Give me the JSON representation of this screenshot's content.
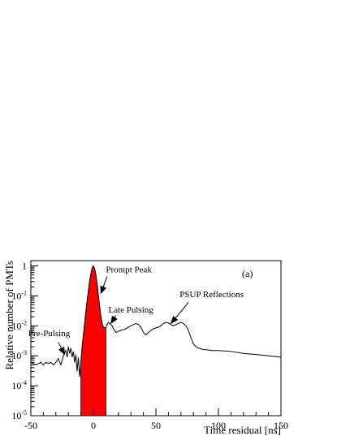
{
  "chart_data": {
    "type": "line",
    "xlabel": "Time residual [ns]",
    "ylabel": "Relative number of PMTs",
    "xlim": [
      -50,
      150
    ],
    "ylim": [
      1e-05,
      1.5
    ],
    "yscale": "log",
    "grid": false,
    "panel_label": "(a)",
    "x_ticks": [
      {
        "value": -50,
        "label": "-50"
      },
      {
        "value": 0,
        "label": "0"
      },
      {
        "value": 50,
        "label": "50"
      },
      {
        "value": 100,
        "label": "100"
      },
      {
        "value": 150,
        "label": "150"
      }
    ],
    "y_ticks": [
      {
        "value": 1,
        "base": "1",
        "exp": ""
      },
      {
        "value": 0.1,
        "base": "10",
        "exp": "-1"
      },
      {
        "value": 0.01,
        "base": "10",
        "exp": "-2"
      },
      {
        "value": 0.001,
        "base": "10",
        "exp": "-3"
      },
      {
        "value": 0.0001,
        "base": "10",
        "exp": "-4"
      },
      {
        "value": 1e-05,
        "base": "10",
        "exp": "-5"
      }
    ],
    "prompt_window": [
      -10,
      10
    ],
    "prompt_fill_color": "#ff0000",
    "curve": {
      "x": [
        -50,
        -48,
        -46,
        -44,
        -42,
        -40,
        -38,
        -36,
        -34,
        -32,
        -30,
        -28,
        -26,
        -24,
        -22,
        -21,
        -20,
        -19,
        -18,
        -17,
        -16,
        -15,
        -14,
        -13,
        -12,
        -11,
        -10,
        -9,
        -8,
        -7,
        -6,
        -5,
        -4,
        -3,
        -2,
        -1,
        0,
        1,
        2,
        3,
        4,
        5,
        6,
        7,
        8,
        9,
        10,
        11,
        12,
        13,
        14,
        15,
        16,
        18,
        20,
        22,
        24,
        26,
        28,
        30,
        32,
        34,
        36,
        38,
        40,
        42,
        44,
        46,
        48,
        50,
        52,
        54,
        56,
        58,
        60,
        62,
        64,
        66,
        68,
        70,
        72,
        74,
        76,
        78,
        80,
        82,
        84,
        86,
        88,
        90,
        95,
        100,
        110,
        120,
        130,
        140,
        150
      ],
      "y": [
        0.0006,
        0.00055,
        0.0005,
        0.00055,
        0.0006,
        0.0005,
        0.0006,
        0.00055,
        0.0006,
        0.0005,
        0.0006,
        0.0008,
        0.0005,
        0.001,
        0.0015,
        0.0009,
        0.002,
        0.0012,
        0.0018,
        0.0009,
        0.0014,
        0.0006,
        0.0011,
        0.0003,
        0.0009,
        0.0002,
        0.0006,
        0.002,
        0.005,
        0.012,
        0.03,
        0.07,
        0.15,
        0.3,
        0.55,
        0.85,
        1.0,
        0.8,
        0.5,
        0.25,
        0.1,
        0.045,
        0.02,
        0.012,
        0.009,
        0.0085,
        0.009,
        0.011,
        0.013,
        0.012,
        0.011,
        0.01,
        0.008,
        0.006,
        0.0065,
        0.007,
        0.0075,
        0.008,
        0.009,
        0.01,
        0.011,
        0.012,
        0.011,
        0.009,
        0.006,
        0.005,
        0.006,
        0.007,
        0.008,
        0.0085,
        0.009,
        0.01,
        0.012,
        0.013,
        0.0125,
        0.011,
        0.01,
        0.011,
        0.012,
        0.013,
        0.012,
        0.01,
        0.007,
        0.004,
        0.0025,
        0.002,
        0.0018,
        0.0017,
        0.0016,
        0.0016,
        0.0015,
        0.0015,
        0.0014,
        0.0012,
        0.0011,
        0.001,
        0.0009
      ]
    },
    "annotations": [
      {
        "text": "Prompt Peak",
        "x": 10,
        "y": 0.6,
        "arrow_to": [
          6,
          0.12
        ]
      },
      {
        "text": "Late Pulsing",
        "x": 12,
        "y": 0.028,
        "arrow_to": [
          14,
          0.012
        ]
      },
      {
        "text": "PSUP Reflections",
        "x": 69,
        "y": 0.09,
        "arrow_to": [
          62,
          0.012
        ]
      },
      {
        "text": "Pre-Pulsing",
        "x": -52,
        "y": 0.0045,
        "arrow_to": [
          -23,
          0.0011
        ]
      }
    ]
  }
}
